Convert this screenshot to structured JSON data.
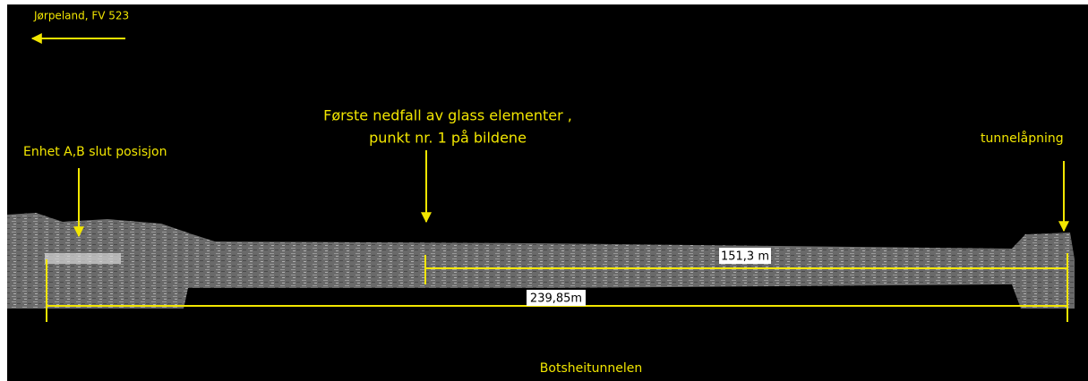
{
  "header": {
    "direction": "Jørpeland, FV 523"
  },
  "annotations": {
    "unit_position": "Enhet A,B slut posisjon",
    "first_fall": {
      "line1": "Første nedfall av  glass elementer ,",
      "line2": "punkt nr. 1 på bildene"
    },
    "tunnel_opening": "tunnelåpning"
  },
  "dimensions": {
    "short": "151,3 m",
    "long": "239,85m"
  },
  "footer": {
    "tunnel_name": "Botsheitunnelen"
  }
}
